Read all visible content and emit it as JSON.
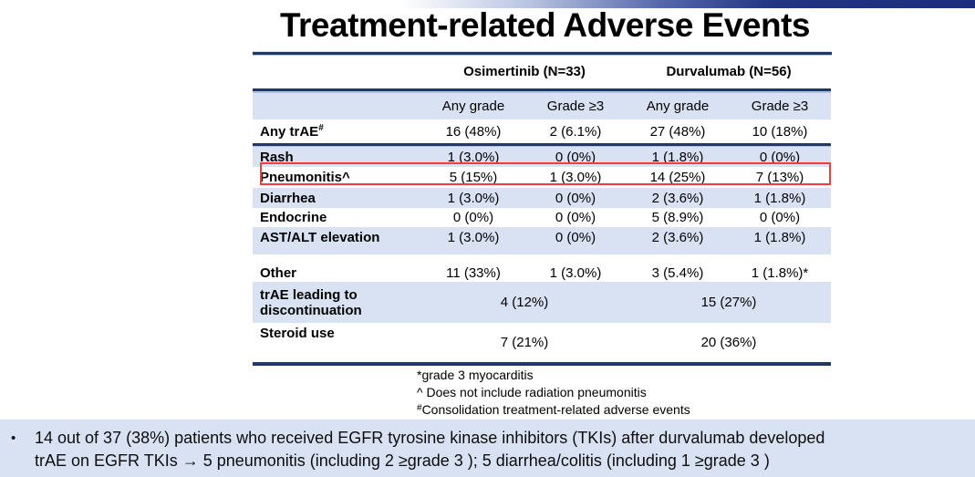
{
  "slide": {
    "title": "Treatment-related Adverse Events"
  },
  "colors": {
    "navy_line": "#1f3864",
    "row_light_blue": "#d9e2f3",
    "highlight_red": "#f23b3b",
    "gradient_bar_end": "#1b2d7c"
  },
  "table": {
    "group_headers": [
      {
        "label": "Osimertinib (N=33)"
      },
      {
        "label": "Durvalumab (N=56)"
      }
    ],
    "col_headers": [
      "Any grade",
      "Grade ≥3",
      "Any grade",
      "Grade ≥3"
    ],
    "rows": [
      {
        "label": "Any trAE",
        "label_sup": "#",
        "cells": [
          "16 (48%)",
          "2 (6.1%)",
          "27 (48%)",
          "10 (18%)"
        ]
      },
      {
        "label": "Rash",
        "cells": [
          "1 (3.0%)",
          "0 (0%)",
          "1 (1.8%)",
          "0 (0%)"
        ]
      },
      {
        "label": "Pneumonitis^",
        "cells": [
          "5 (15%)",
          "1 (3.0%)",
          "14 (25%)",
          "7 (13%)"
        ]
      },
      {
        "label": "Diarrhea",
        "cells": [
          "1 (3.0%)",
          "0 (0%)",
          "2 (3.6%)",
          "1 (1.8%)"
        ]
      },
      {
        "label": "Endocrine",
        "cells": [
          "0 (0%)",
          "0 (0%)",
          "5 (8.9%)",
          "0 (0%)"
        ]
      },
      {
        "label": "AST/ALT elevation",
        "cells": [
          "1 (3.0%)",
          "0 (0%)",
          "2 (3.6%)",
          "1 (1.8%)"
        ]
      },
      {
        "label": "Other",
        "cells": [
          "11 (33%)",
          "1 (3.0%)",
          "3 (5.4%)",
          "1 (1.8%)*"
        ]
      },
      {
        "label": "trAE leading to discontinuation",
        "cells_span": [
          "4 (12%)",
          "15 (27%)"
        ]
      },
      {
        "label": "Steroid use",
        "cells_span": [
          "7 (21%)",
          "20 (36%)"
        ]
      }
    ],
    "footnotes": {
      "line1": "*grade 3 myocarditis",
      "line2": "^ Does not include radiation pneumonitis",
      "line3_sup": "#",
      "line3_text": "Consolidation treatment-related adverse events"
    }
  },
  "callout": {
    "bullet": "•",
    "line1": "14 out of 37 (38%) patients who received EGFR tyrosine kinase inhibitors (TKIs) after durvalumab developed",
    "line2": "trAE on EGFR TKIs → 5 pneumonitis (including 2 ≥grade 3 ); 5 diarrhea/colitis (including 1 ≥grade 3 )"
  }
}
